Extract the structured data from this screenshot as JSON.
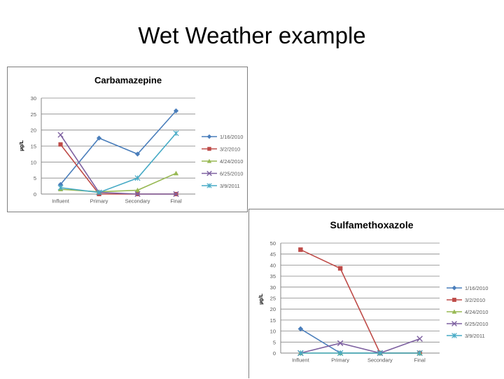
{
  "slide": {
    "title": "Wet Weather example"
  },
  "colors": {
    "series": [
      "#4a7ebb",
      "#be4b48",
      "#98b954",
      "#7d60a0",
      "#46aac5"
    ],
    "grid": "#868686",
    "text": "#595959"
  },
  "chart_data": [
    {
      "type": "line",
      "title": "Carbamazepine",
      "ylabel": "µg/L",
      "xlabel": "",
      "categories": [
        "Influent",
        "Primary",
        "Secondary",
        "Final"
      ],
      "ylim": [
        0,
        30
      ],
      "yticks": [
        0,
        5,
        10,
        15,
        20,
        25,
        30
      ],
      "grid": true,
      "legend": "right",
      "series": [
        {
          "name": "1/16/2010",
          "marker": "diamond",
          "values": [
            3,
            17.5,
            12.5,
            26
          ]
        },
        {
          "name": "3/2/2010",
          "marker": "square",
          "values": [
            15.5,
            0,
            0,
            0
          ]
        },
        {
          "name": "4/24/2010",
          "marker": "triangle",
          "values": [
            1.5,
            0.7,
            1.2,
            6.5
          ]
        },
        {
          "name": "6/25/2010",
          "marker": "x",
          "values": [
            18.5,
            0.5,
            0,
            0
          ]
        },
        {
          "name": "3/9/2011",
          "marker": "star",
          "values": [
            2,
            0.5,
            5,
            19
          ]
        }
      ]
    },
    {
      "type": "line",
      "title": "Sulfamethoxazole",
      "ylabel": "µg/L",
      "xlabel": "",
      "categories": [
        "Influent",
        "Primary",
        "Secondary",
        "Final"
      ],
      "ylim": [
        0,
        50
      ],
      "yticks": [
        0,
        5,
        10,
        15,
        20,
        25,
        30,
        35,
        40,
        45,
        50
      ],
      "grid": true,
      "legend": "right",
      "series": [
        {
          "name": "1/16/2010",
          "marker": "diamond",
          "values": [
            11,
            0,
            0,
            0
          ]
        },
        {
          "name": "3/2/2010",
          "marker": "square",
          "values": [
            47,
            38.5,
            0,
            0
          ]
        },
        {
          "name": "4/24/2010",
          "marker": "triangle",
          "values": [
            0,
            0,
            0,
            0
          ]
        },
        {
          "name": "6/25/2010",
          "marker": "x",
          "values": [
            0,
            4.5,
            0,
            6.5
          ]
        },
        {
          "name": "3/9/2011",
          "marker": "star",
          "values": [
            0,
            0,
            0,
            0
          ]
        }
      ]
    }
  ]
}
